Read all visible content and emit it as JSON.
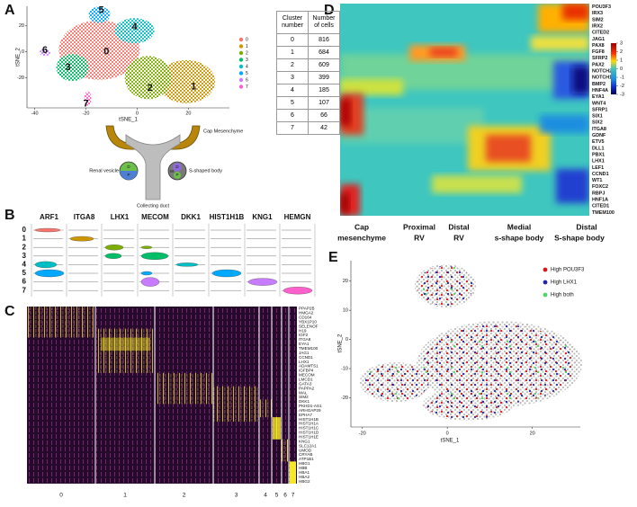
{
  "panel_labels": [
    "A",
    "B",
    "C",
    "D",
    "E"
  ],
  "chart_data": [
    {
      "type": "scatter",
      "xlabel": "tSNE_1",
      "ylabel": "tSNE_2",
      "xlim": [
        -43,
        36
      ],
      "ylim": [
        -43,
        35
      ],
      "xticks": [
        -40,
        -20,
        0,
        20
      ],
      "yticks": [
        -20,
        0,
        20
      ],
      "series": [
        {
          "name": "0",
          "color": "#f8766d",
          "x": [
            -12
          ],
          "values": [
            0
          ]
        },
        {
          "name": "1",
          "color": "#cd9600",
          "x": [
            22
          ],
          "values": [
            -27
          ]
        },
        {
          "name": "2",
          "color": "#7cae00",
          "x": [
            5
          ],
          "values": [
            -28
          ]
        },
        {
          "name": "3",
          "color": "#00be67",
          "x": [
            -27
          ],
          "values": [
            -12
          ]
        },
        {
          "name": "4",
          "color": "#00bfc4",
          "x": [
            -1
          ],
          "values": [
            19
          ]
        },
        {
          "name": "5",
          "color": "#00a9ff",
          "x": [
            -14
          ],
          "values": [
            32
          ]
        },
        {
          "name": "6",
          "color": "#c77cff",
          "x": [
            -36
          ],
          "values": [
            1
          ]
        },
        {
          "name": "7",
          "color": "#ff61cc",
          "x": [
            -20
          ],
          "values": [
            -40
          ]
        }
      ]
    },
    {
      "type": "violin",
      "genes": [
        "ARF1",
        "ITGA8",
        "LHX1",
        "MECOM",
        "DKK1",
        "HIST1H1B",
        "KNG1",
        "HEMGN"
      ],
      "clusters": [
        "0",
        "1",
        "2",
        "3",
        "4",
        "5",
        "6",
        "7"
      ]
    },
    {
      "type": "heatmap",
      "genes": [
        "PPAP2B",
        "HMGA2",
        "CD164",
        "YBX1P10",
        "SELENOF",
        "H19",
        "IGF2",
        "ITGA8",
        "EYA1",
        "TMEM100",
        "JAG1",
        "CCND1",
        "LHX1",
        "ADAMTS1",
        "IGFBP4",
        "MECOM",
        "LMCD1",
        "GATA3",
        "PAPPA2",
        "MAL",
        "SIM2",
        "DKK1",
        "PKHD1-AS1",
        "ARHGAP29",
        "EPHA7",
        "HIST1H1B",
        "HIST1H1A",
        "HIST1H1C",
        "HIST1H1D",
        "HIST1H1E",
        "KNG1",
        "SLC12A1",
        "UMOD",
        "CRYAB",
        "ATP1B1",
        "HBG1",
        "HBB",
        "HBA1",
        "HBA2",
        "HBG2"
      ],
      "clusters": [
        "0",
        "1",
        "2",
        "3",
        "4",
        "5",
        "6",
        "7"
      ]
    },
    {
      "type": "heatmap",
      "genes": [
        "POU3F3",
        "IRX3",
        "SIM2",
        "IRX2",
        "CITED2",
        "JAG1",
        "PAX8",
        "FGF8",
        "SFRP2",
        "PAX2",
        "NOTCH2",
        "NOTCH1",
        "BMP2",
        "HNF4A",
        "EYA1",
        "WNT4",
        "SFRP1",
        "SIX1",
        "SIX2",
        "ITGA8",
        "GDNF",
        "ETV5",
        "DLL1",
        "PBX1",
        "LHX1",
        "LEF1",
        "CCND1",
        "WT1",
        "FOXC2",
        "RBPJ",
        "HNF1A",
        "CITED1",
        "TMEM100"
      ],
      "stages": [
        [
          "Cap",
          "mesenchyme"
        ],
        [
          "Proximal",
          "RV"
        ],
        [
          "Distal",
          "RV"
        ],
        [
          "Medial",
          "s-shape body"
        ],
        [
          "Distal",
          "S-shape body"
        ]
      ],
      "colorbar": {
        "lim": [
          -3,
          3
        ],
        "ticks": [
          3,
          2,
          1,
          0,
          -1,
          -2,
          -3
        ]
      }
    },
    {
      "type": "scatter",
      "xlabel": "tSNE_1",
      "ylabel": "tSNE_2",
      "xlim": [
        -22.7,
        31.3
      ],
      "ylim": [
        -30,
        27
      ],
      "xticks": [
        -20,
        0,
        20
      ],
      "yticks": [
        -20,
        -10,
        0,
        10,
        20
      ],
      "series": [
        {
          "name": "High POU3F3",
          "color": "#d7191c"
        },
        {
          "name": "High LHX1",
          "color": "#2323a8"
        },
        {
          "name": "High both",
          "color": "#4cd964"
        }
      ]
    }
  ],
  "table": {
    "header": [
      "Cluster number",
      "Number of cells"
    ],
    "rows": [
      [
        0,
        816
      ],
      [
        1,
        684
      ],
      [
        2,
        609
      ],
      [
        3,
        399
      ],
      [
        4,
        185
      ],
      [
        5,
        107
      ],
      [
        6,
        66
      ],
      [
        7,
        42
      ]
    ]
  },
  "diagram": {
    "labels": [
      "Cap Mesenchyme",
      "Renal vesicle",
      "S-shaped body",
      "Collecting duct"
    ],
    "rv_regions": [
      "D",
      "P"
    ],
    "ssb_regions": [
      "D",
      "M",
      "P"
    ]
  }
}
